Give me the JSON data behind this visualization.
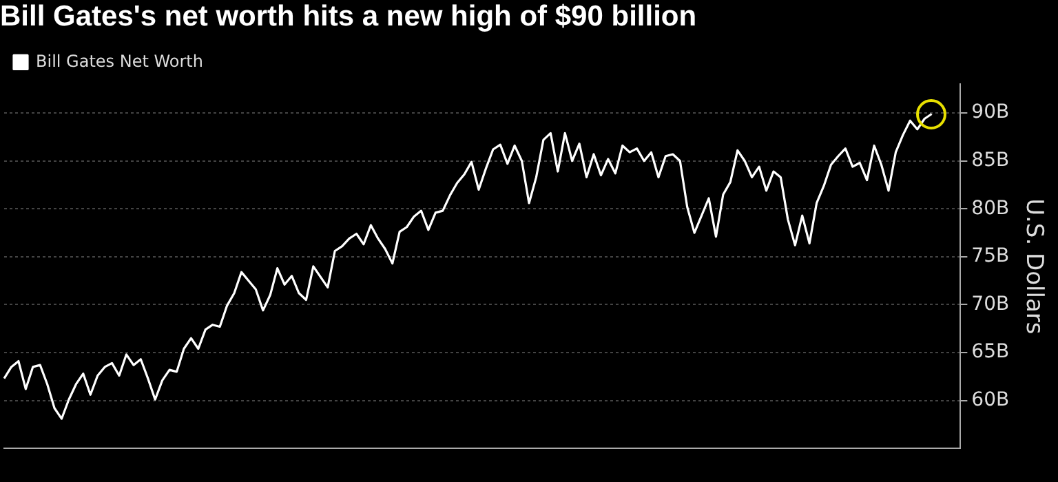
{
  "chart_data": {
    "type": "line",
    "title": "Bill Gates's net worth hits a new high of $90 billion",
    "ylabel": "U.S. Dollars",
    "legend": "top left",
    "grid": "y",
    "marker": "none",
    "line_style": "solid",
    "categories": [
      null,
      null,
      null,
      null,
      null,
      null,
      null,
      null,
      null,
      null,
      null,
      null,
      null,
      null,
      null,
      null,
      null,
      null,
      null,
      null,
      null,
      null,
      null,
      null,
      null,
      null,
      null,
      null,
      null,
      null,
      null,
      null,
      null,
      null,
      null,
      null,
      null,
      null,
      null,
      null,
      null,
      null,
      null,
      null,
      null,
      null,
      null,
      null,
      null,
      null,
      null,
      null,
      null,
      null,
      null,
      null,
      null,
      null,
      null,
      null,
      null,
      null,
      null,
      null,
      null,
      null,
      null,
      null,
      null,
      null,
      null,
      null,
      null,
      null,
      null,
      null,
      null,
      null,
      null,
      null,
      null,
      null,
      null,
      null,
      null,
      null,
      null,
      null,
      null,
      null,
      null,
      null,
      null,
      null,
      null,
      null,
      null,
      null,
      null,
      null,
      null,
      null,
      null,
      null,
      null,
      null,
      null,
      null,
      null,
      null,
      null,
      null,
      null,
      null,
      null,
      null,
      null,
      null,
      null,
      null,
      null,
      null,
      null,
      null,
      null,
      null,
      null,
      null,
      null,
      null,
      null,
      null,
      null,
      null
    ],
    "ylim": [
      55,
      93
    ],
    "yticks": [
      {
        "value": 60,
        "label": "60B"
      },
      {
        "value": 65,
        "label": "65B"
      },
      {
        "value": 70,
        "label": "70B"
      },
      {
        "value": 75,
        "label": "75B"
      },
      {
        "value": 80,
        "label": "80B"
      },
      {
        "value": 85,
        "label": "85B"
      },
      {
        "value": 90,
        "label": "90B"
      }
    ],
    "series": [
      {
        "name": "Bill Gates Net Worth",
        "color": "#ffffff",
        "values": [
          62.3,
          63.5,
          64.1,
          61.2,
          63.5,
          63.7,
          61.7,
          59.2,
          58.1,
          60.1,
          61.7,
          62.8,
          60.6,
          62.6,
          63.5,
          63.9,
          62.6,
          64.8,
          63.7,
          64.3,
          62.3,
          60.1,
          62.1,
          63.2,
          63.0,
          65.4,
          66.5,
          65.4,
          67.4,
          67.9,
          67.7,
          69.9,
          71.2,
          73.4,
          72.5,
          71.6,
          69.4,
          71.0,
          73.8,
          72.1,
          73.0,
          71.2,
          70.5,
          74.0,
          72.9,
          71.8,
          75.6,
          76.1,
          76.9,
          77.4,
          76.3,
          78.3,
          76.9,
          75.8,
          74.3,
          77.6,
          78.1,
          79.2,
          79.8,
          77.8,
          79.6,
          79.8,
          81.4,
          82.7,
          83.6,
          84.9,
          82.0,
          84.2,
          86.2,
          86.7,
          84.7,
          86.6,
          85.0,
          80.6,
          83.3,
          87.2,
          87.9,
          83.9,
          87.9,
          85.0,
          86.8,
          83.3,
          85.7,
          83.5,
          85.2,
          83.7,
          86.6,
          85.9,
          86.3,
          85.0,
          85.9,
          83.3,
          85.5,
          85.7,
          85.0,
          80.2,
          77.5,
          79.3,
          81.1,
          77.1,
          81.5,
          82.8,
          86.1,
          85.0,
          83.3,
          84.4,
          81.9,
          83.9,
          83.3,
          78.9,
          76.2,
          79.3,
          76.4,
          80.6,
          82.4,
          84.6,
          85.5,
          86.3,
          84.4,
          84.8,
          83.0,
          86.6,
          84.6,
          81.9,
          85.9,
          87.7,
          89.2,
          88.3,
          89.4,
          89.9,
          null,
          null,
          null,
          null
        ]
      }
    ]
  }
}
